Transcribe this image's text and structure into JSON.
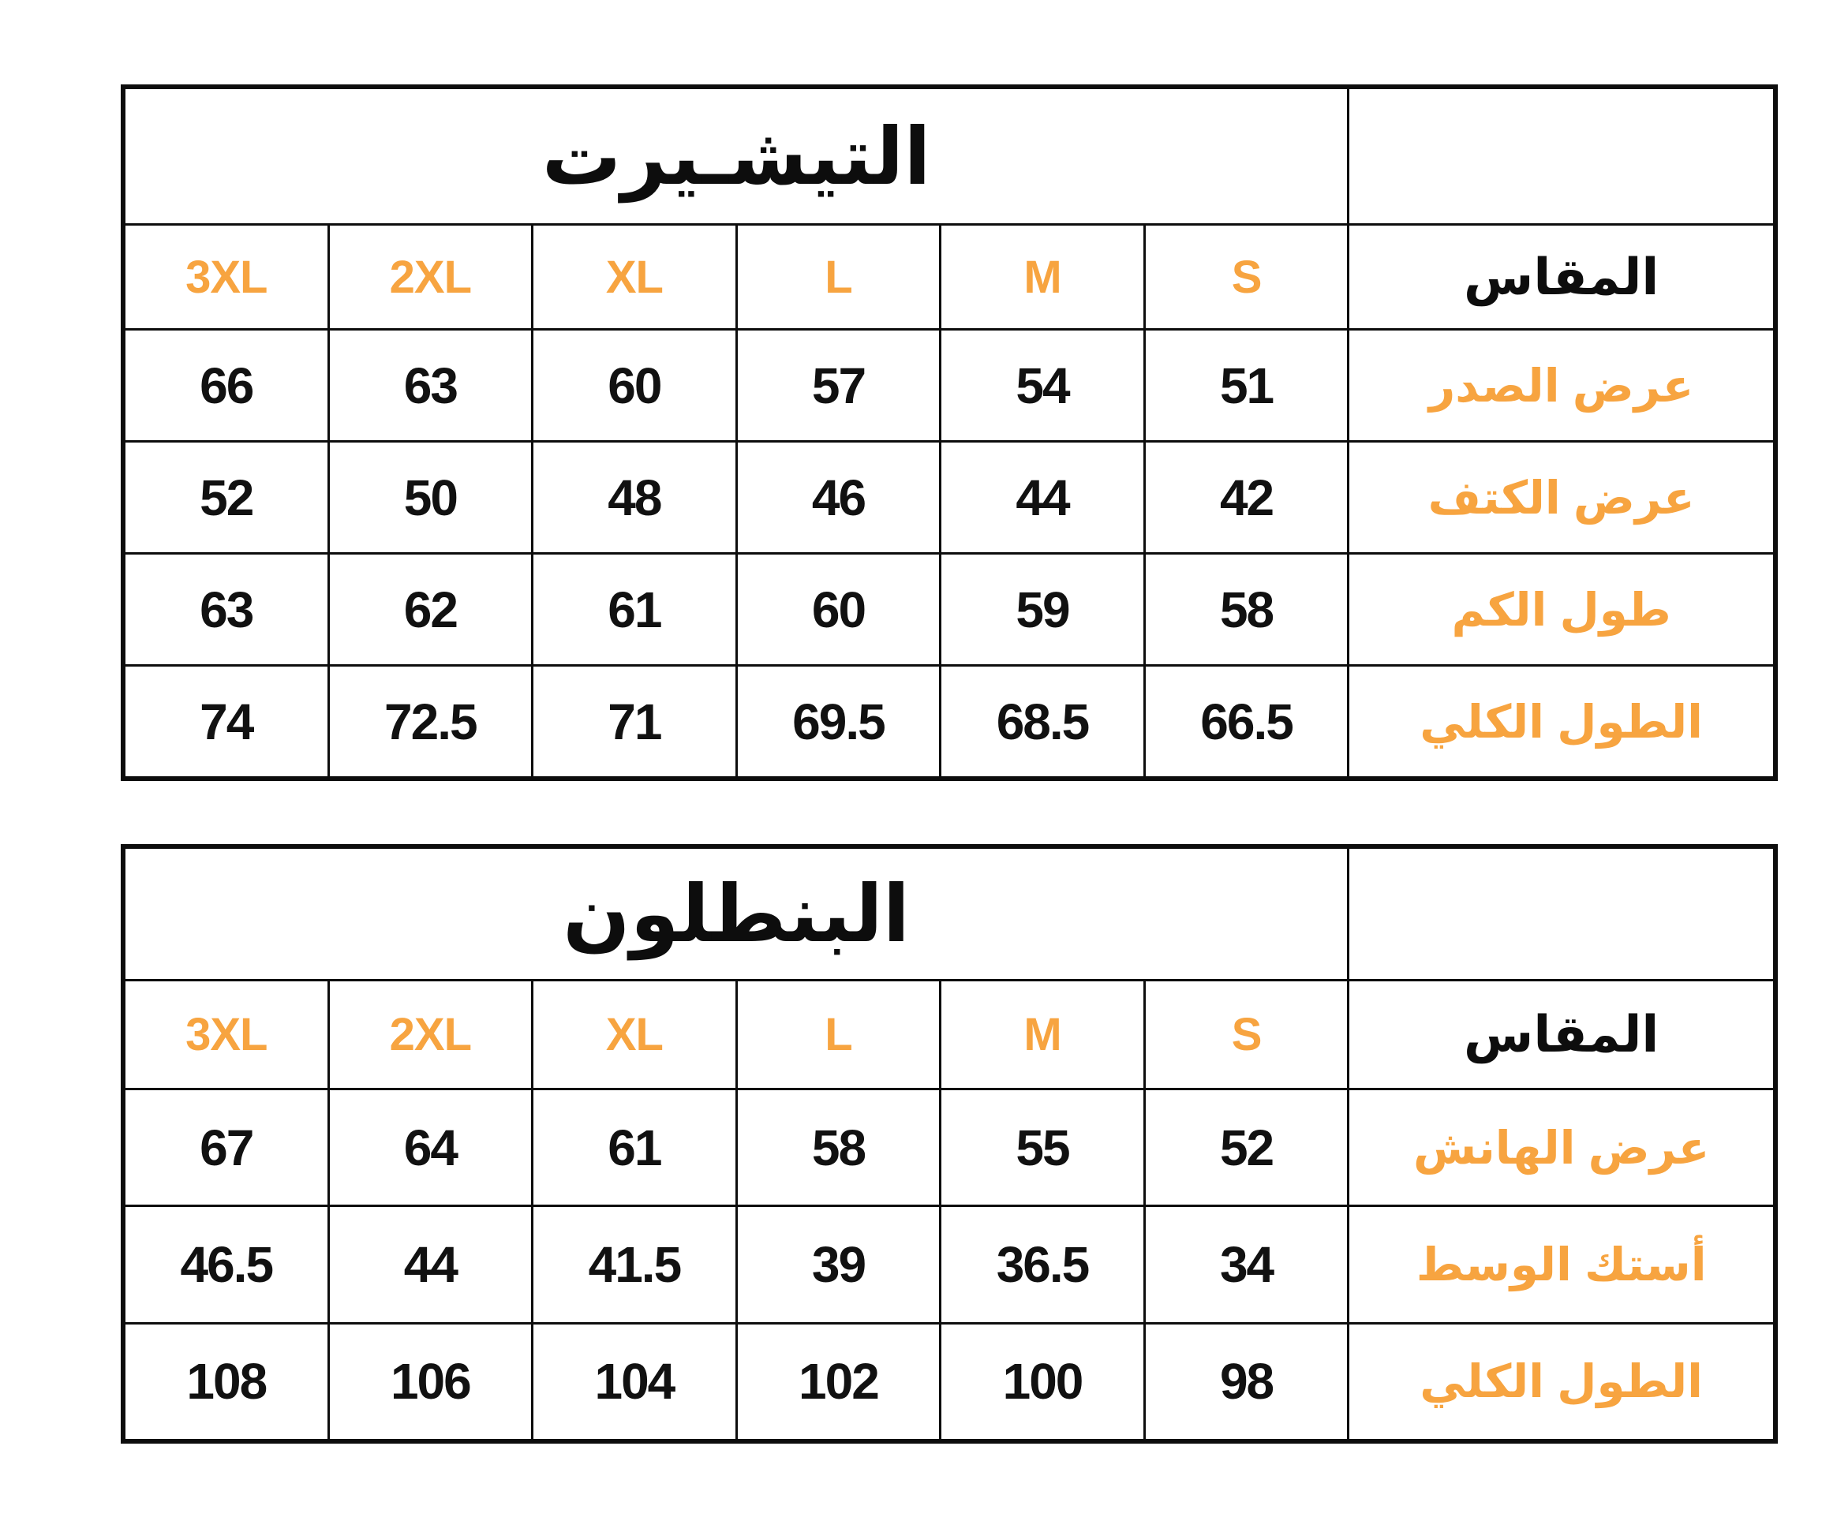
{
  "colors": {
    "accent_orange": "#f7a440",
    "ink_black": "#0d0d0d",
    "background": "#ffffff"
  },
  "header": {
    "size_label": "المقاس",
    "size_columns": [
      "3XL",
      "2XL",
      "XL",
      "L",
      "M",
      "S"
    ]
  },
  "tables": [
    {
      "title": "التيشـيرت",
      "rows": [
        {
          "label": "عرض الصدر",
          "values": [
            "66",
            "63",
            "60",
            "57",
            "54",
            "51"
          ]
        },
        {
          "label": "عرض الكتف",
          "values": [
            "52",
            "50",
            "48",
            "46",
            "44",
            "42"
          ]
        },
        {
          "label": "طول الكم",
          "values": [
            "63",
            "62",
            "61",
            "60",
            "59",
            "58"
          ]
        },
        {
          "label": "الطول الكلي",
          "values": [
            "74",
            "72.5",
            "71",
            "69.5",
            "68.5",
            "66.5"
          ]
        }
      ]
    },
    {
      "title": "البنطلون",
      "rows": [
        {
          "label": "عرض الهانش",
          "values": [
            "67",
            "64",
            "61",
            "58",
            "55",
            "52"
          ]
        },
        {
          "label": "أستك الوسط",
          "values": [
            "46.5",
            "44",
            "41.5",
            "39",
            "36.5",
            "34"
          ]
        },
        {
          "label": "الطول الكلي",
          "values": [
            "108",
            "106",
            "104",
            "102",
            "100",
            "98"
          ]
        }
      ]
    }
  ]
}
